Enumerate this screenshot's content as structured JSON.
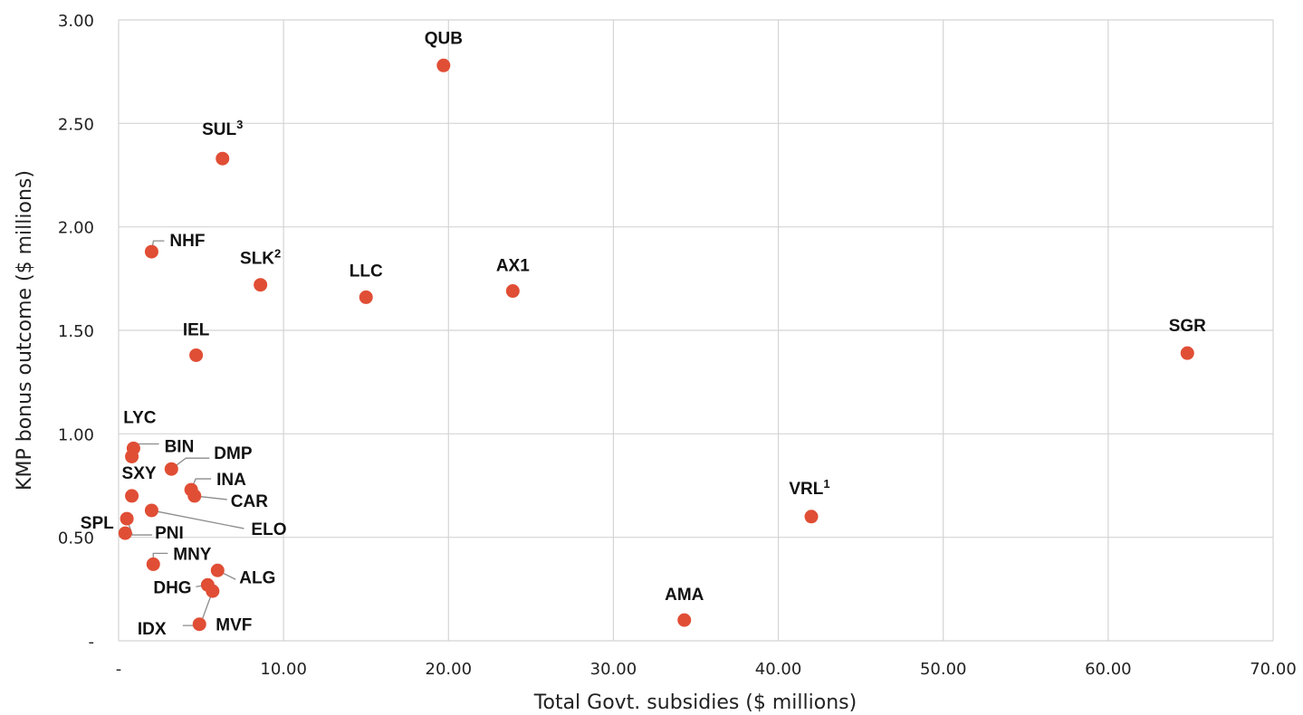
{
  "chart_data": {
    "type": "scatter",
    "xlabel": "Total Govt. subsidies ($ millions)",
    "ylabel": "KMP bonus outcome ($ millions)",
    "xlim": [
      0,
      70
    ],
    "ylim": [
      0,
      3
    ],
    "x_ticks": [
      {
        "value": 0,
        "label": "-"
      },
      {
        "value": 10,
        "label": "10.00"
      },
      {
        "value": 20,
        "label": "20.00"
      },
      {
        "value": 30,
        "label": "30.00"
      },
      {
        "value": 40,
        "label": "40.00"
      },
      {
        "value": 50,
        "label": "50.00"
      },
      {
        "value": 60,
        "label": "60.00"
      },
      {
        "value": 70,
        "label": "70.00"
      }
    ],
    "y_ticks": [
      {
        "value": 0,
        "label": "-"
      },
      {
        "value": 0.5,
        "label": "0.50"
      },
      {
        "value": 1.0,
        "label": "1.00"
      },
      {
        "value": 1.5,
        "label": "1.50"
      },
      {
        "value": 2.0,
        "label": "2.00"
      },
      {
        "value": 2.5,
        "label": "2.50"
      },
      {
        "value": 3.0,
        "label": "3.00"
      }
    ],
    "grid": true,
    "marker_color": "#e04e35",
    "points": [
      {
        "label": "QUB",
        "sup": "",
        "x": 19.7,
        "y": 2.78
      },
      {
        "label": "SUL",
        "sup": "3",
        "x": 6.3,
        "y": 2.33
      },
      {
        "label": "NHF",
        "sup": "",
        "x": 2.0,
        "y": 1.88
      },
      {
        "label": "SLK",
        "sup": "2",
        "x": 8.6,
        "y": 1.72
      },
      {
        "label": "LLC",
        "sup": "",
        "x": 15.0,
        "y": 1.66
      },
      {
        "label": "AX1",
        "sup": "",
        "x": 23.9,
        "y": 1.69
      },
      {
        "label": "IEL",
        "sup": "",
        "x": 4.7,
        "y": 1.38
      },
      {
        "label": "SGR",
        "sup": "",
        "x": 64.8,
        "y": 1.39
      },
      {
        "label": "LYC",
        "sup": "",
        "x": 0.9,
        "y": 0.93
      },
      {
        "label": "BIN",
        "sup": "",
        "x": 0.8,
        "y": 0.89
      },
      {
        "label": "DMP",
        "sup": "",
        "x": 3.2,
        "y": 0.83
      },
      {
        "label": "INA",
        "sup": "",
        "x": 4.4,
        "y": 0.73
      },
      {
        "label": "CAR",
        "sup": "",
        "x": 4.6,
        "y": 0.7
      },
      {
        "label": "SXY",
        "sup": "",
        "x": 0.8,
        "y": 0.7
      },
      {
        "label": "ELO",
        "sup": "",
        "x": 2.0,
        "y": 0.63
      },
      {
        "label": "VRL",
        "sup": "1",
        "x": 42.0,
        "y": 0.6
      },
      {
        "label": "PNI",
        "sup": "",
        "x": 0.5,
        "y": 0.59
      },
      {
        "label": "SPL",
        "sup": "",
        "x": 0.4,
        "y": 0.52
      },
      {
        "label": "MNY",
        "sup": "",
        "x": 2.1,
        "y": 0.37
      },
      {
        "label": "ALG",
        "sup": "",
        "x": 6.0,
        "y": 0.34
      },
      {
        "label": "DHG",
        "sup": "",
        "x": 5.4,
        "y": 0.27
      },
      {
        "label": "IDX",
        "sup": "",
        "x": 5.7,
        "y": 0.24
      },
      {
        "label": "AMA",
        "sup": "",
        "x": 34.3,
        "y": 0.1
      },
      {
        "label": "MVF",
        "sup": "",
        "x": 4.9,
        "y": 0.08
      }
    ]
  }
}
